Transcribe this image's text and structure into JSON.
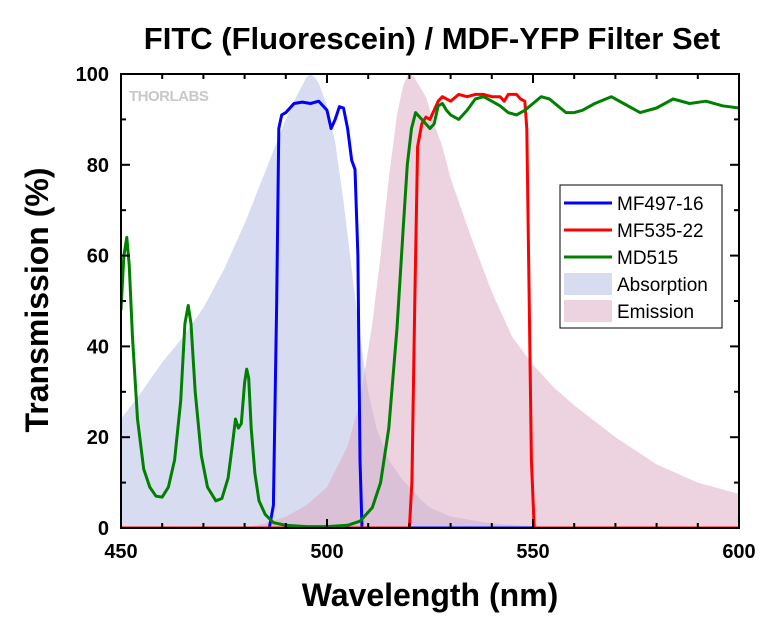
{
  "chart_data": {
    "type": "line",
    "title": "FITC (Fluorescein) / MDF-YFP Filter Set",
    "xlabel": "Wavelength (nm)",
    "ylabel": "Transmission (%)",
    "xlim": [
      450,
      600
    ],
    "ylim": [
      0,
      100
    ],
    "xticks": [
      450,
      500,
      550,
      600
    ],
    "yticks": [
      0,
      20,
      40,
      60,
      80,
      100
    ],
    "grid": false,
    "legend_position": "right",
    "watermark": "THORLABS",
    "series": [
      {
        "name": "MF497-16",
        "kind": "line",
        "color": "#0000ff",
        "points": [
          [
            450,
            0
          ],
          [
            486,
            0
          ],
          [
            487,
            5
          ],
          [
            487.8,
            50
          ],
          [
            488.3,
            88
          ],
          [
            489,
            91
          ],
          [
            490,
            91.5
          ],
          [
            492,
            93.5
          ],
          [
            494,
            93.8
          ],
          [
            496,
            93.5
          ],
          [
            498,
            94
          ],
          [
            499,
            93
          ],
          [
            500,
            92
          ],
          [
            501,
            88
          ],
          [
            502,
            90
          ],
          [
            503,
            92.8
          ],
          [
            504,
            92.5
          ],
          [
            505,
            88
          ],
          [
            506,
            81
          ],
          [
            506.8,
            79
          ],
          [
            507.5,
            60
          ],
          [
            508,
            15
          ],
          [
            508.5,
            0
          ],
          [
            600,
            0
          ]
        ]
      },
      {
        "name": "MF535-22",
        "kind": "line",
        "color": "#ff0000",
        "points": [
          [
            450,
            0
          ],
          [
            520,
            0
          ],
          [
            520.6,
            10
          ],
          [
            521.3,
            50
          ],
          [
            522,
            84
          ],
          [
            523,
            89
          ],
          [
            524,
            90.5
          ],
          [
            525,
            90
          ],
          [
            526,
            92
          ],
          [
            527,
            94
          ],
          [
            528,
            95
          ],
          [
            530,
            94
          ],
          [
            532,
            95.5
          ],
          [
            534,
            95
          ],
          [
            536,
            95.5
          ],
          [
            538,
            95.5
          ],
          [
            540,
            95
          ],
          [
            542,
            95
          ],
          [
            543,
            94
          ],
          [
            544,
            95.5
          ],
          [
            546,
            95.5
          ],
          [
            547,
            94.5
          ],
          [
            548,
            94
          ],
          [
            548.5,
            88
          ],
          [
            549,
            55
          ],
          [
            549.6,
            15
          ],
          [
            550.3,
            0
          ],
          [
            600,
            0
          ]
        ]
      },
      {
        "name": "MD515",
        "kind": "line",
        "color": "#008000",
        "points": [
          [
            450,
            48
          ],
          [
            450.7,
            60
          ],
          [
            451.4,
            64
          ],
          [
            452,
            58
          ],
          [
            452.8,
            42
          ],
          [
            454,
            24
          ],
          [
            455.5,
            13
          ],
          [
            457,
            9
          ],
          [
            458.5,
            7
          ],
          [
            460,
            6.8
          ],
          [
            461.5,
            9
          ],
          [
            463,
            15
          ],
          [
            464.5,
            28
          ],
          [
            465.5,
            45
          ],
          [
            466.3,
            49
          ],
          [
            467,
            45
          ],
          [
            468,
            30
          ],
          [
            469.5,
            16
          ],
          [
            471,
            9
          ],
          [
            473,
            6
          ],
          [
            474.5,
            6.5
          ],
          [
            476,
            11
          ],
          [
            477,
            18
          ],
          [
            477.8,
            24
          ],
          [
            478.5,
            22
          ],
          [
            479.2,
            23
          ],
          [
            480,
            32
          ],
          [
            480.5,
            35
          ],
          [
            481,
            33
          ],
          [
            481.6,
            22
          ],
          [
            482.5,
            12
          ],
          [
            483.5,
            6
          ],
          [
            485,
            3
          ],
          [
            487,
            1.2
          ],
          [
            490,
            0.6
          ],
          [
            495,
            0.3
          ],
          [
            500,
            0.3
          ],
          [
            505,
            0.6
          ],
          [
            508,
            1.5
          ],
          [
            511,
            4.5
          ],
          [
            513,
            10
          ],
          [
            515,
            22
          ],
          [
            517,
            44
          ],
          [
            518.5,
            66
          ],
          [
            519.5,
            80
          ],
          [
            520.5,
            88
          ],
          [
            521.5,
            91.5
          ],
          [
            523,
            90
          ],
          [
            525,
            88
          ],
          [
            526,
            89
          ],
          [
            527,
            93
          ],
          [
            528,
            93.5
          ],
          [
            529,
            92
          ],
          [
            530,
            91
          ],
          [
            532,
            90
          ],
          [
            534,
            92
          ],
          [
            536,
            94.5
          ],
          [
            538,
            95
          ],
          [
            540,
            94
          ],
          [
            542,
            93
          ],
          [
            544,
            91.5
          ],
          [
            546,
            91
          ],
          [
            548,
            92
          ],
          [
            550,
            93.5
          ],
          [
            552,
            95
          ],
          [
            554,
            94.5
          ],
          [
            556,
            93
          ],
          [
            558,
            91.5
          ],
          [
            560,
            91.5
          ],
          [
            562,
            92
          ],
          [
            565,
            93.5
          ],
          [
            569,
            95
          ],
          [
            572,
            93.5
          ],
          [
            576,
            91.5
          ],
          [
            580,
            92.5
          ],
          [
            584,
            94.5
          ],
          [
            588,
            93.5
          ],
          [
            592,
            94
          ],
          [
            596,
            93
          ],
          [
            600,
            92.5
          ]
        ]
      },
      {
        "name": "Absorption",
        "kind": "area",
        "color": "#d8dcf0",
        "opacity": 1,
        "points": [
          [
            450,
            24
          ],
          [
            455,
            30
          ],
          [
            460,
            36.5
          ],
          [
            465,
            42
          ],
          [
            470,
            48.5
          ],
          [
            475,
            57
          ],
          [
            480,
            67
          ],
          [
            485,
            78.5
          ],
          [
            490,
            90
          ],
          [
            492,
            94
          ],
          [
            494,
            97.5
          ],
          [
            495,
            99.3
          ],
          [
            496,
            100
          ],
          [
            497,
            99.3
          ],
          [
            498,
            98
          ],
          [
            500,
            93
          ],
          [
            502,
            85
          ],
          [
            504,
            72
          ],
          [
            506,
            57
          ],
          [
            508,
            42
          ],
          [
            510,
            30
          ],
          [
            512,
            22
          ],
          [
            515,
            15
          ],
          [
            518,
            11
          ],
          [
            520,
            9
          ],
          [
            523,
            6
          ],
          [
            525,
            4.5
          ],
          [
            530,
            2.5
          ],
          [
            540,
            1
          ],
          [
            550,
            0.4
          ],
          [
            560,
            0.1
          ],
          [
            600,
            0
          ]
        ]
      },
      {
        "name": "Emission",
        "kind": "area",
        "color": "#dba6c0",
        "opacity": 0.5,
        "points": [
          [
            480,
            0
          ],
          [
            485,
            1
          ],
          [
            490,
            2.5
          ],
          [
            495,
            5
          ],
          [
            500,
            9
          ],
          [
            505,
            18
          ],
          [
            508,
            28
          ],
          [
            511,
            45
          ],
          [
            513,
            60
          ],
          [
            515,
            77
          ],
          [
            517,
            91
          ],
          [
            518.5,
            97.5
          ],
          [
            519.5,
            99.5
          ],
          [
            520,
            100
          ],
          [
            521,
            99.5
          ],
          [
            522,
            98
          ],
          [
            524,
            95
          ],
          [
            526,
            89
          ],
          [
            528,
            84
          ],
          [
            530,
            77
          ],
          [
            535,
            64
          ],
          [
            540,
            52
          ],
          [
            545,
            42
          ],
          [
            550,
            36
          ],
          [
            555,
            31
          ],
          [
            560,
            27
          ],
          [
            565,
            23.5
          ],
          [
            570,
            20
          ],
          [
            575,
            17
          ],
          [
            580,
            14
          ],
          [
            590,
            10
          ],
          [
            600,
            7.5
          ],
          [
            600,
            0
          ]
        ]
      }
    ]
  }
}
